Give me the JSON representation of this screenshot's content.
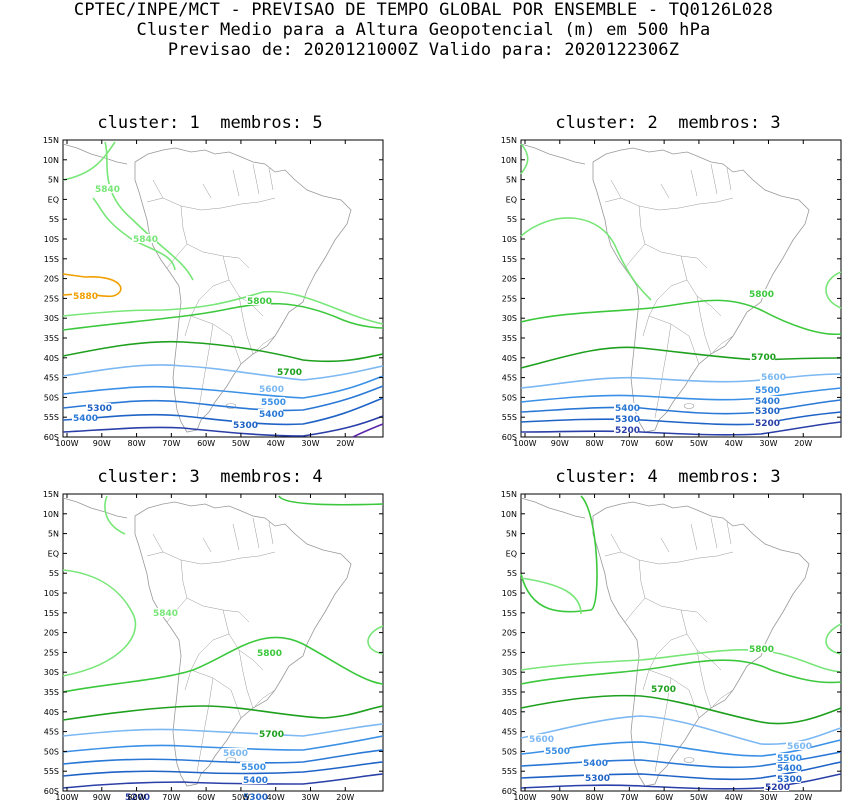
{
  "header": {
    "line1": "CPTEC/INPE/MCT - PREVISAO DE TEMPO GLOBAL POR ENSEMBLE - TQ0126L028",
    "line2": "Cluster Medio para a Altura Geopotencial (m) em 500 hPa",
    "line3": "Previsao de: 2020121000Z   Valido para: 2020122306Z"
  },
  "axes": {
    "lat_labels": [
      "15N",
      "10N",
      "5N",
      "EQ",
      "5S",
      "10S",
      "15S",
      "20S",
      "25S",
      "30S",
      "35S",
      "40S",
      "45S",
      "50S",
      "55S",
      "60S"
    ],
    "lon_labels": [
      "100W",
      "90W",
      "80W",
      "70W",
      "60W",
      "50W",
      "40W",
      "30W",
      "20W"
    ]
  },
  "colors": {
    "c5200": "#2a3fa8",
    "c5300": "#1f63c6",
    "c5400": "#2a78d6",
    "c5500": "#3a90e6",
    "c5600": "#7cb8f2",
    "c5700": "#1ea01e",
    "c5800": "#3cc83c",
    "c5840": "#78e678",
    "c5880": "#f0a000",
    "c5100": "#5a28a8",
    "border": "#999999"
  },
  "panels": [
    {
      "title": "cluster: 1  membros: 5",
      "labels": [
        {
          "text": "5840",
          "color": "c5840"
        },
        {
          "text": "5840",
          "color": "c5840"
        },
        {
          "text": "5880",
          "color": "c5880"
        },
        {
          "text": "5800",
          "color": "c5800"
        },
        {
          "text": "5700",
          "color": "c5700"
        },
        {
          "text": "5600",
          "color": "c5600"
        },
        {
          "text": "5500",
          "color": "c5500"
        },
        {
          "text": "5400",
          "color": "c5400"
        },
        {
          "text": "5300",
          "color": "c5300"
        },
        {
          "text": "5300",
          "color": "c5300"
        },
        {
          "text": "5400",
          "color": "c5400"
        }
      ]
    },
    {
      "title": "cluster: 2  membros: 3",
      "labels": [
        {
          "text": "5800",
          "color": "c5800"
        },
        {
          "text": "5700",
          "color": "c5700"
        },
        {
          "text": "5600",
          "color": "c5600"
        },
        {
          "text": "5500",
          "color": "c5500"
        },
        {
          "text": "5400",
          "color": "c5400"
        },
        {
          "text": "5400",
          "color": "c5400"
        },
        {
          "text": "5300",
          "color": "c5300"
        },
        {
          "text": "5300",
          "color": "c5300"
        },
        {
          "text": "5200",
          "color": "c5200"
        },
        {
          "text": "5200",
          "color": "c5200"
        }
      ]
    },
    {
      "title": "cluster: 3  membros: 4",
      "labels": [
        {
          "text": "5840",
          "color": "c5840"
        },
        {
          "text": "5800",
          "color": "c5800"
        },
        {
          "text": "5700",
          "color": "c5700"
        },
        {
          "text": "5600",
          "color": "c5600"
        },
        {
          "text": "5500",
          "color": "c5500"
        },
        {
          "text": "5400",
          "color": "c5400"
        },
        {
          "text": "5300",
          "color": "c5300"
        },
        {
          "text": "5200",
          "color": "c5200"
        }
      ]
    },
    {
      "title": "cluster: 4  membros: 3",
      "labels": [
        {
          "text": "5800",
          "color": "c5800"
        },
        {
          "text": "5700",
          "color": "c5700"
        },
        {
          "text": "5600",
          "color": "c5600"
        },
        {
          "text": "5600",
          "color": "c5600"
        },
        {
          "text": "5500",
          "color": "c5500"
        },
        {
          "text": "5500",
          "color": "c5500"
        },
        {
          "text": "5400",
          "color": "c5400"
        },
        {
          "text": "5400",
          "color": "c5400"
        },
        {
          "text": "5300",
          "color": "c5300"
        },
        {
          "text": "5300",
          "color": "c5300"
        },
        {
          "text": "5200",
          "color": "c5200"
        }
      ]
    }
  ]
}
